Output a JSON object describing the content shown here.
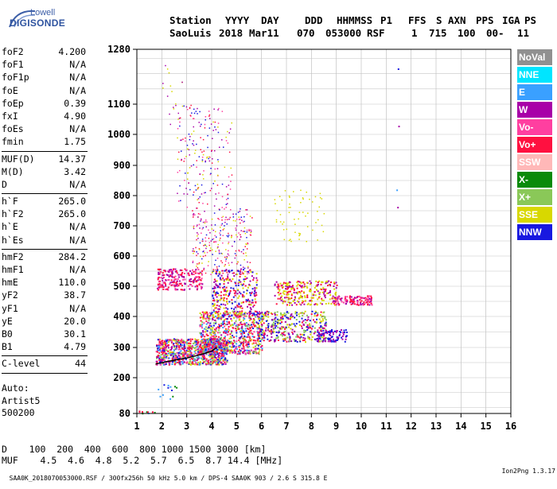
{
  "logo": {
    "line1": "Lowell",
    "line2": "DIGISONDE"
  },
  "header": {
    "labels": [
      "Station",
      "YYYY",
      "DAY",
      "DDD",
      "HHMMSS",
      "P1",
      "FFS",
      "S",
      "AXN",
      "PPS",
      "IGA",
      "PS"
    ],
    "values": [
      "SaoLuis",
      "2018",
      "Mar11",
      "070",
      "053000",
      "RSF",
      "1",
      "715",
      "100",
      "00-",
      "11"
    ]
  },
  "params": [
    {
      "name": "foF2",
      "value": "4.200"
    },
    {
      "name": "foF1",
      "value": "N/A"
    },
    {
      "name": "foF1p",
      "value": "N/A"
    },
    {
      "name": "foE",
      "value": "N/A"
    },
    {
      "name": "foEp",
      "value": "0.39"
    },
    {
      "name": "fxI",
      "value": "4.90"
    },
    {
      "name": "foEs",
      "value": "N/A"
    },
    {
      "name": "fmin",
      "value": "1.75"
    },
    {
      "name": "MUF(D)",
      "value": "14.37"
    },
    {
      "name": "M(D)",
      "value": "3.42"
    },
    {
      "name": "D",
      "value": "N/A"
    },
    {
      "name": "h`F",
      "value": "265.0"
    },
    {
      "name": "h`F2",
      "value": "265.0"
    },
    {
      "name": "h`E",
      "value": "N/A"
    },
    {
      "name": "h`Es",
      "value": "N/A"
    },
    {
      "name": "hmF2",
      "value": "284.2"
    },
    {
      "name": "hmF1",
      "value": "N/A"
    },
    {
      "name": "hmE",
      "value": "110.0"
    },
    {
      "name": "yF2",
      "value": "38.7"
    },
    {
      "name": "yF1",
      "value": "N/A"
    },
    {
      "name": "yE",
      "value": "20.0"
    },
    {
      "name": "B0",
      "value": "30.1"
    },
    {
      "name": "B1",
      "value": "4.79"
    },
    {
      "name": "C-level",
      "value": "44"
    }
  ],
  "auto": {
    "label": "Auto:",
    "software": "Artist5",
    "version": "500200"
  },
  "legend": [
    {
      "name": "NoVal",
      "color": "#909090"
    },
    {
      "name": "NNE",
      "color": "#00e5ff"
    },
    {
      "name": "E",
      "color": "#3aa0ff"
    },
    {
      "name": "W",
      "color": "#a800a8"
    },
    {
      "name": "Vo-",
      "color": "#ff3fa0"
    },
    {
      "name": "Vo+",
      "color": "#ff1040"
    },
    {
      "name": "SSW",
      "color": "#ffb8b8"
    },
    {
      "name": "X-",
      "color": "#0a8a0a"
    },
    {
      "name": "X+",
      "color": "#8ac858"
    },
    {
      "name": "SSE",
      "color": "#d8d800"
    },
    {
      "name": "NNW",
      "color": "#1818e0"
    }
  ],
  "muf_table": {
    "d_label": "D",
    "distances": [
      "100",
      "200",
      "400",
      "600",
      "800",
      "1000",
      "1500",
      "3000"
    ],
    "d_unit": "[km]",
    "muf_label": "MUF",
    "mufs": [
      "4.5",
      "4.6",
      "4.8",
      "5.2",
      "5.7",
      "6.5",
      "8.7",
      "14.4"
    ],
    "muf_unit": "[MHz]"
  },
  "footer": {
    "left": "SAA0K_2018070053000.RSF / 300fx256h 50 kHz 5.0 km / DPS-4 SAA0K 903 / 2.6 S 315.8 E",
    "right": "Ion2Png 1.3.17"
  },
  "chart_data": {
    "type": "scatter",
    "xlim": [
      1,
      16
    ],
    "ylim": [
      80,
      1280
    ],
    "x_ticks": [
      1,
      2,
      3,
      4,
      5,
      6,
      7,
      8,
      9,
      10,
      11,
      12,
      13,
      14,
      15,
      16
    ],
    "y_ticks": [
      80,
      200,
      300,
      400,
      500,
      600,
      700,
      800,
      900,
      1000,
      1100,
      1280
    ],
    "grid": true,
    "legend_position": "right",
    "trace_points": [
      [
        1.75,
        245
      ],
      [
        2.0,
        250
      ],
      [
        2.5,
        258
      ],
      [
        3.0,
        265
      ],
      [
        3.5,
        275
      ],
      [
        4.0,
        288
      ],
      [
        4.2,
        300
      ]
    ]
  }
}
